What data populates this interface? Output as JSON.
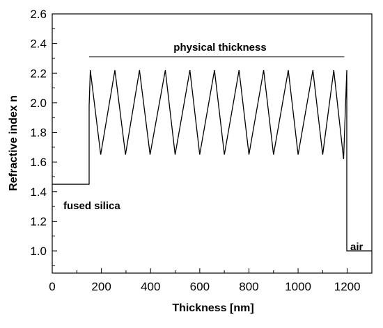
{
  "chart_data": {
    "type": "line",
    "xlabel": "Thickness [nm]",
    "ylabel": "Refractive index n",
    "xlim": [
      0,
      1300
    ],
    "ylim": [
      0.85,
      2.6
    ],
    "xticks": [
      0,
      200,
      400,
      600,
      800,
      1000,
      1200
    ],
    "xtick_labels": [
      "0",
      "200",
      "400",
      "600",
      "800",
      "1000",
      "1200"
    ],
    "yticks": [
      1.0,
      1.2,
      1.4,
      1.6,
      1.8,
      2.0,
      2.2,
      2.4,
      2.6
    ],
    "ytick_labels": [
      "1.0",
      "1.2",
      "1.4",
      "1.6",
      "1.8",
      "2.0",
      "2.2",
      "2.4",
      "2.6"
    ],
    "grid": false,
    "series": [
      {
        "x": [
          0,
          150,
          150,
          155,
          197,
          255,
          298,
          355,
          398,
          460,
          500,
          560,
          600,
          660,
          700,
          760,
          800,
          860,
          900,
          960,
          1000,
          1060,
          1100,
          1145,
          1185,
          1198,
          1198,
          1300
        ],
        "y": [
          1.45,
          1.45,
          1.98,
          2.22,
          1.65,
          2.22,
          1.65,
          2.22,
          1.65,
          2.22,
          1.65,
          2.22,
          1.65,
          2.22,
          1.65,
          2.22,
          1.65,
          2.22,
          1.65,
          2.22,
          1.65,
          2.22,
          1.65,
          2.22,
          1.62,
          2.22,
          1.0,
          1.0
        ]
      }
    ],
    "annotations": [
      {
        "label": "physical thickness",
        "x_start": 150,
        "x_end": 1188,
        "y": 2.31,
        "text": "physical thickness"
      },
      {
        "label": "fused silica",
        "text": "fused silica"
      },
      {
        "label": "air",
        "text": "air"
      }
    ]
  }
}
